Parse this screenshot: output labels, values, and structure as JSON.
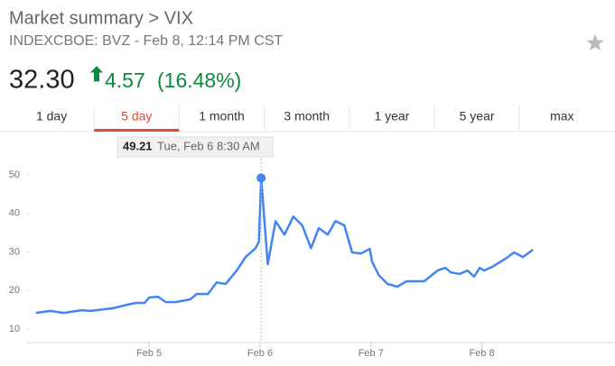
{
  "header": {
    "title": "Market summary > VIX",
    "subtitle": "INDEXCBOE: BVZ - Feb 8, 12:14 PM CST",
    "price": "32.30",
    "change": "4.57",
    "change_percent": "(16.48%)"
  },
  "tabs": {
    "items": [
      "1 day",
      "5 day",
      "1 month",
      "3 month",
      "1 year",
      "5 year",
      "max"
    ],
    "selected": 1
  },
  "chart_data": {
    "type": "line",
    "x": [
      -0.02,
      0.11,
      0.23,
      0.39,
      0.47,
      0.67,
      0.8,
      0.88,
      0.96,
      1.0,
      1.08,
      1.15,
      1.24,
      1.37,
      1.43,
      1.53,
      1.61,
      1.69,
      1.79,
      1.87,
      1.96,
      1.99,
      2.01,
      2.07,
      2.14,
      2.22,
      2.3,
      2.38,
      2.46,
      2.53,
      2.61,
      2.68,
      2.76,
      2.83,
      2.91,
      2.99,
      3.01,
      3.07,
      3.15,
      3.24,
      3.32,
      3.4,
      3.48,
      3.6,
      3.67,
      3.72,
      3.8,
      3.87,
      3.93,
      3.98,
      4.02,
      4.09,
      4.21,
      4.29,
      4.37,
      4.46
    ],
    "series": [
      {
        "name": "VIX",
        "color": "#4285f4",
        "values": [
          14.2,
          14.7,
          14.2,
          14.9,
          14.7,
          15.4,
          16.3,
          16.8,
          16.8,
          18.2,
          18.4,
          17.0,
          17.0,
          17.7,
          19.1,
          19.1,
          22.1,
          21.7,
          25.2,
          28.7,
          31.0,
          32.7,
          49.21,
          26.8,
          38.0,
          34.5,
          39.2,
          36.9,
          31.0,
          36.2,
          34.5,
          38.0,
          36.9,
          29.9,
          29.6,
          30.8,
          27.5,
          24.0,
          21.7,
          21.0,
          22.4,
          22.4,
          22.4,
          25.2,
          25.9,
          24.7,
          24.3,
          25.2,
          23.6,
          25.9,
          25.2,
          26.1,
          28.2,
          29.9,
          28.7,
          30.6
        ]
      }
    ],
    "xlim": [
      -0.1,
      5.2
    ],
    "xticks": [
      {
        "value": 1,
        "label": "Feb 5"
      },
      {
        "value": 2,
        "label": "Feb 6"
      },
      {
        "value": 3,
        "label": "Feb 7"
      },
      {
        "value": 4,
        "label": "Feb 8"
      }
    ],
    "ylim": [
      6.5,
      60.3
    ],
    "yticks": [
      10,
      20,
      30,
      40,
      50
    ],
    "tooltip": {
      "value": 49.21,
      "label": "Tue, Feb 6 8:30 AM",
      "point": 22
    }
  }
}
